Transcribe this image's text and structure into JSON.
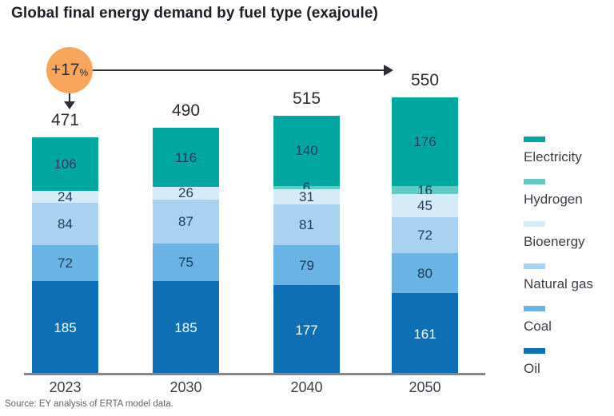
{
  "title": "Global final energy demand by fuel type (exajoule)",
  "source": "Source: EY analysis of ERTA model data.",
  "annotation": {
    "badge_value": "+17",
    "badge_unit": "%",
    "badge_color": "#F8A65C"
  },
  "chart_data": {
    "type": "bar",
    "stacked": true,
    "title": "Global final energy demand by fuel type (exajoule)",
    "unit": "exajoule",
    "categories": [
      "2023",
      "2030",
      "2040",
      "2050"
    ],
    "totals": [
      471,
      490,
      515,
      550
    ],
    "series": [
      {
        "name": "Oil",
        "color": "#0E6FB4",
        "label_color": "#FFFFFF",
        "values": [
          185,
          185,
          177,
          161
        ]
      },
      {
        "name": "Coal",
        "color": "#69B4E4",
        "label_color": "#1F3C5A",
        "values": [
          72,
          75,
          79,
          80
        ]
      },
      {
        "name": "Natural gas",
        "color": "#A8D2F0",
        "label_color": "#1F3C5A",
        "values": [
          84,
          87,
          81,
          72
        ]
      },
      {
        "name": "Bioenergy",
        "color": "#D6EAF8",
        "label_color": "#1F3C5A",
        "values": [
          24,
          26,
          31,
          45
        ]
      },
      {
        "name": "Hydrogen",
        "color": "#62C9C3",
        "label_color": "#1F3C5A",
        "values": [
          0,
          0,
          6,
          16
        ]
      },
      {
        "name": "Electricity",
        "color": "#00A7A0",
        "label_color": "#1F3C5A",
        "values": [
          106,
          116,
          140,
          176
        ]
      }
    ],
    "legend": [
      "Electricity",
      "Hydrogen",
      "Bioenergy",
      "Natural gas",
      "Coal",
      "Oil"
    ],
    "legend_position": "right",
    "grid": false,
    "annotation_text": "+17% growth from 2023 (471) to 2050 (550)"
  }
}
